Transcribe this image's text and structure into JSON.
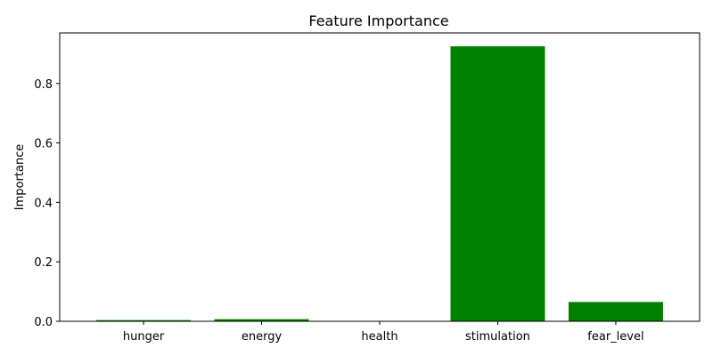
{
  "chart_data": {
    "type": "bar",
    "title": "Feature Importance",
    "xlabel": "",
    "ylabel": "Importance",
    "categories": [
      "hunger",
      "energy",
      "health",
      "stimulation",
      "fear_level"
    ],
    "values": [
      0.004,
      0.007,
      0.0,
      0.925,
      0.065
    ],
    "ylim": [
      0,
      0.97
    ],
    "yticks": [
      0.0,
      0.2,
      0.4,
      0.6,
      0.8
    ],
    "ytick_labels": [
      "0.0",
      "0.2",
      "0.4",
      "0.6",
      "0.8"
    ],
    "bar_color": "#008000",
    "grid": false,
    "legend": false
  }
}
